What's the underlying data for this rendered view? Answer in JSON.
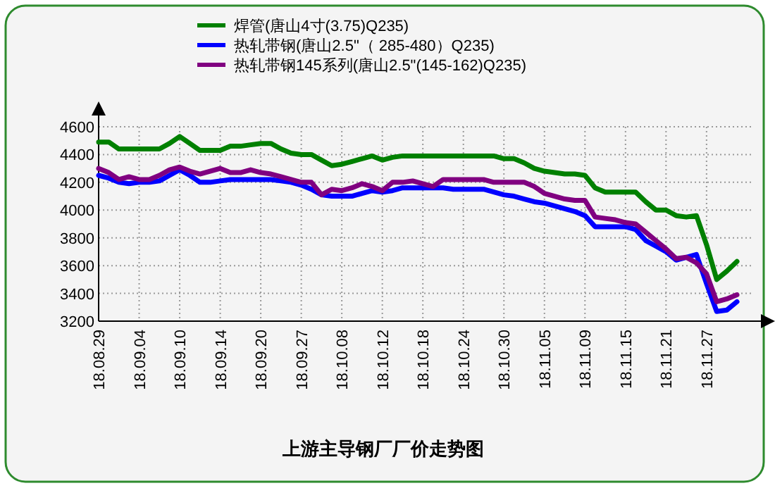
{
  "chart_data": {
    "type": "line",
    "title": "上游主导钢厂厂价走势图",
    "categories": [
      "18.08.29",
      null,
      null,
      null,
      "18.09.04",
      null,
      null,
      null,
      "18.09.10",
      null,
      null,
      null,
      "18.09.14",
      null,
      null,
      null,
      "18.09.20",
      null,
      null,
      null,
      "18.09.27",
      null,
      null,
      null,
      "18.10.08",
      null,
      null,
      null,
      "18.10.12",
      null,
      null,
      null,
      "18.10.18",
      null,
      null,
      null,
      "18.10.24",
      null,
      null,
      null,
      "18.10.30",
      null,
      null,
      null,
      "18.11.05",
      null,
      null,
      null,
      "18.11.09",
      null,
      null,
      null,
      "18.11.15",
      null,
      null,
      null,
      "18.11.21",
      null,
      null,
      null,
      "18.11.27",
      null,
      null,
      null
    ],
    "series": [
      {
        "name": "焊管(唐山4寸(3.75)Q235)",
        "color": "#008000",
        "values": [
          4490,
          4490,
          4440,
          4440,
          4440,
          4440,
          4440,
          4480,
          4530,
          4480,
          4430,
          4430,
          4430,
          4460,
          4460,
          4470,
          4480,
          4480,
          4440,
          4410,
          4400,
          4400,
          4360,
          4320,
          4330,
          4350,
          4370,
          4390,
          4360,
          4380,
          4390,
          4390,
          4390,
          4390,
          4390,
          4390,
          4390,
          4390,
          4390,
          4390,
          4370,
          4370,
          4340,
          4300,
          4280,
          4270,
          4260,
          4260,
          4250,
          4160,
          4130,
          4130,
          4130,
          4130,
          4060,
          4000,
          4000,
          3960,
          3950,
          3960,
          3750,
          3500,
          3560,
          3630
        ]
      },
      {
        "name": "热轧带钢(唐山2.5\"（ 285-480）Q235)",
        "color": "#0000ff",
        "values": [
          4250,
          4230,
          4200,
          4190,
          4200,
          4200,
          4210,
          4250,
          4290,
          4250,
          4200,
          4200,
          4210,
          4220,
          4220,
          4220,
          4220,
          4220,
          4210,
          4200,
          4180,
          4150,
          4110,
          4100,
          4100,
          4100,
          4120,
          4140,
          4130,
          4140,
          4160,
          4160,
          4160,
          4160,
          4160,
          4150,
          4150,
          4150,
          4150,
          4130,
          4110,
          4100,
          4080,
          4060,
          4050,
          4030,
          4010,
          3990,
          3960,
          3880,
          3880,
          3880,
          3880,
          3860,
          3780,
          3740,
          3700,
          3640,
          3660,
          3680,
          3470,
          3270,
          3280,
          3340
        ]
      },
      {
        "name": "热轧带钢145系列(唐山2.5\"(145-162)Q235)",
        "color": "#800080",
        "values": [
          4300,
          4270,
          4220,
          4240,
          4220,
          4220,
          4250,
          4290,
          4310,
          4280,
          4260,
          4280,
          4300,
          4270,
          4270,
          4290,
          4270,
          4260,
          4240,
          4220,
          4200,
          4200,
          4110,
          4150,
          4140,
          4160,
          4190,
          4170,
          4140,
          4200,
          4200,
          4210,
          4190,
          4170,
          4220,
          4220,
          4220,
          4220,
          4220,
          4200,
          4200,
          4200,
          4200,
          4170,
          4120,
          4100,
          4080,
          4070,
          4070,
          3950,
          3940,
          3930,
          3910,
          3900,
          3840,
          3780,
          3720,
          3650,
          3660,
          3620,
          3540,
          3340,
          3360,
          3390
        ]
      }
    ],
    "ylim": [
      3200,
      4600
    ],
    "yticks": [
      3200,
      3400,
      3600,
      3800,
      4000,
      4200,
      4400,
      4600
    ],
    "grid": true,
    "legend": "top"
  }
}
